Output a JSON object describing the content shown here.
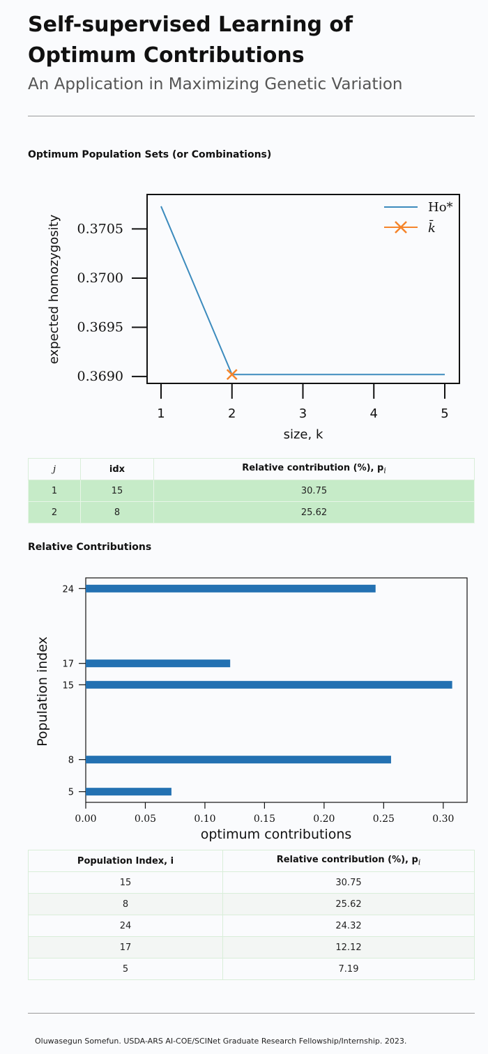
{
  "page": {
    "title": "Self-supervised Learning of Optimum Contributions",
    "subtitle": "An Application in Maximizing Genetic Variation",
    "footer": "Oluwasegun Somefun. USDA-ARS AI-COE/SCINet Graduate Research Fellowship/Internship. 2023."
  },
  "section1": {
    "title": "Optimum Population Sets (or Combinations)"
  },
  "section2": {
    "title": "Relative Contributions"
  },
  "chart_data": [
    {
      "type": "line",
      "xlabel": "size, k",
      "ylabel": "expected homozygosity",
      "x": [
        1,
        2,
        3,
        4,
        5
      ],
      "xticks": [
        "1",
        "2",
        "3",
        "4",
        "5"
      ],
      "yticks": [
        "0.3690",
        "0.3695",
        "0.3700",
        "0.3705"
      ],
      "ylim": [
        0.36893,
        0.37085
      ],
      "legend_position": "top-right",
      "series": [
        {
          "name": "Ho*",
          "values": [
            0.37073,
            0.36902,
            0.36902,
            0.36902,
            0.36902
          ],
          "color": "#3c8bbd"
        },
        {
          "name": "k̄",
          "marker": "x",
          "x": [
            2
          ],
          "values": [
            0.36902
          ],
          "color": "#f5842a"
        }
      ]
    },
    {
      "type": "bar",
      "orientation": "horizontal",
      "xlabel": "optimum contributions",
      "ylabel": "Population index",
      "categories": [
        24,
        17,
        15,
        8,
        5
      ],
      "values": [
        0.2432,
        0.1212,
        0.3075,
        0.2562,
        0.0719
      ],
      "xticks": [
        "0.00",
        "0.05",
        "0.10",
        "0.15",
        "0.20",
        "0.25",
        "0.30"
      ],
      "xlim": [
        0,
        0.32
      ],
      "ylim": [
        4,
        25
      ],
      "color": "#2371b2"
    }
  ],
  "table1": {
    "headers": [
      "j",
      "idx",
      "Relative contribution (%), p"
    ],
    "header_subscript": "i",
    "rows": [
      [
        "1",
        "15",
        "30.75"
      ],
      [
        "2",
        "8",
        "25.62"
      ]
    ]
  },
  "table2": {
    "headers": [
      "Population Index, i",
      "Relative contribution (%), p"
    ],
    "header_subscript": "i",
    "rows": [
      [
        "15",
        "30.75"
      ],
      [
        "8",
        "25.62"
      ],
      [
        "24",
        "24.32"
      ],
      [
        "17",
        "12.12"
      ],
      [
        "5",
        "7.19"
      ]
    ]
  }
}
